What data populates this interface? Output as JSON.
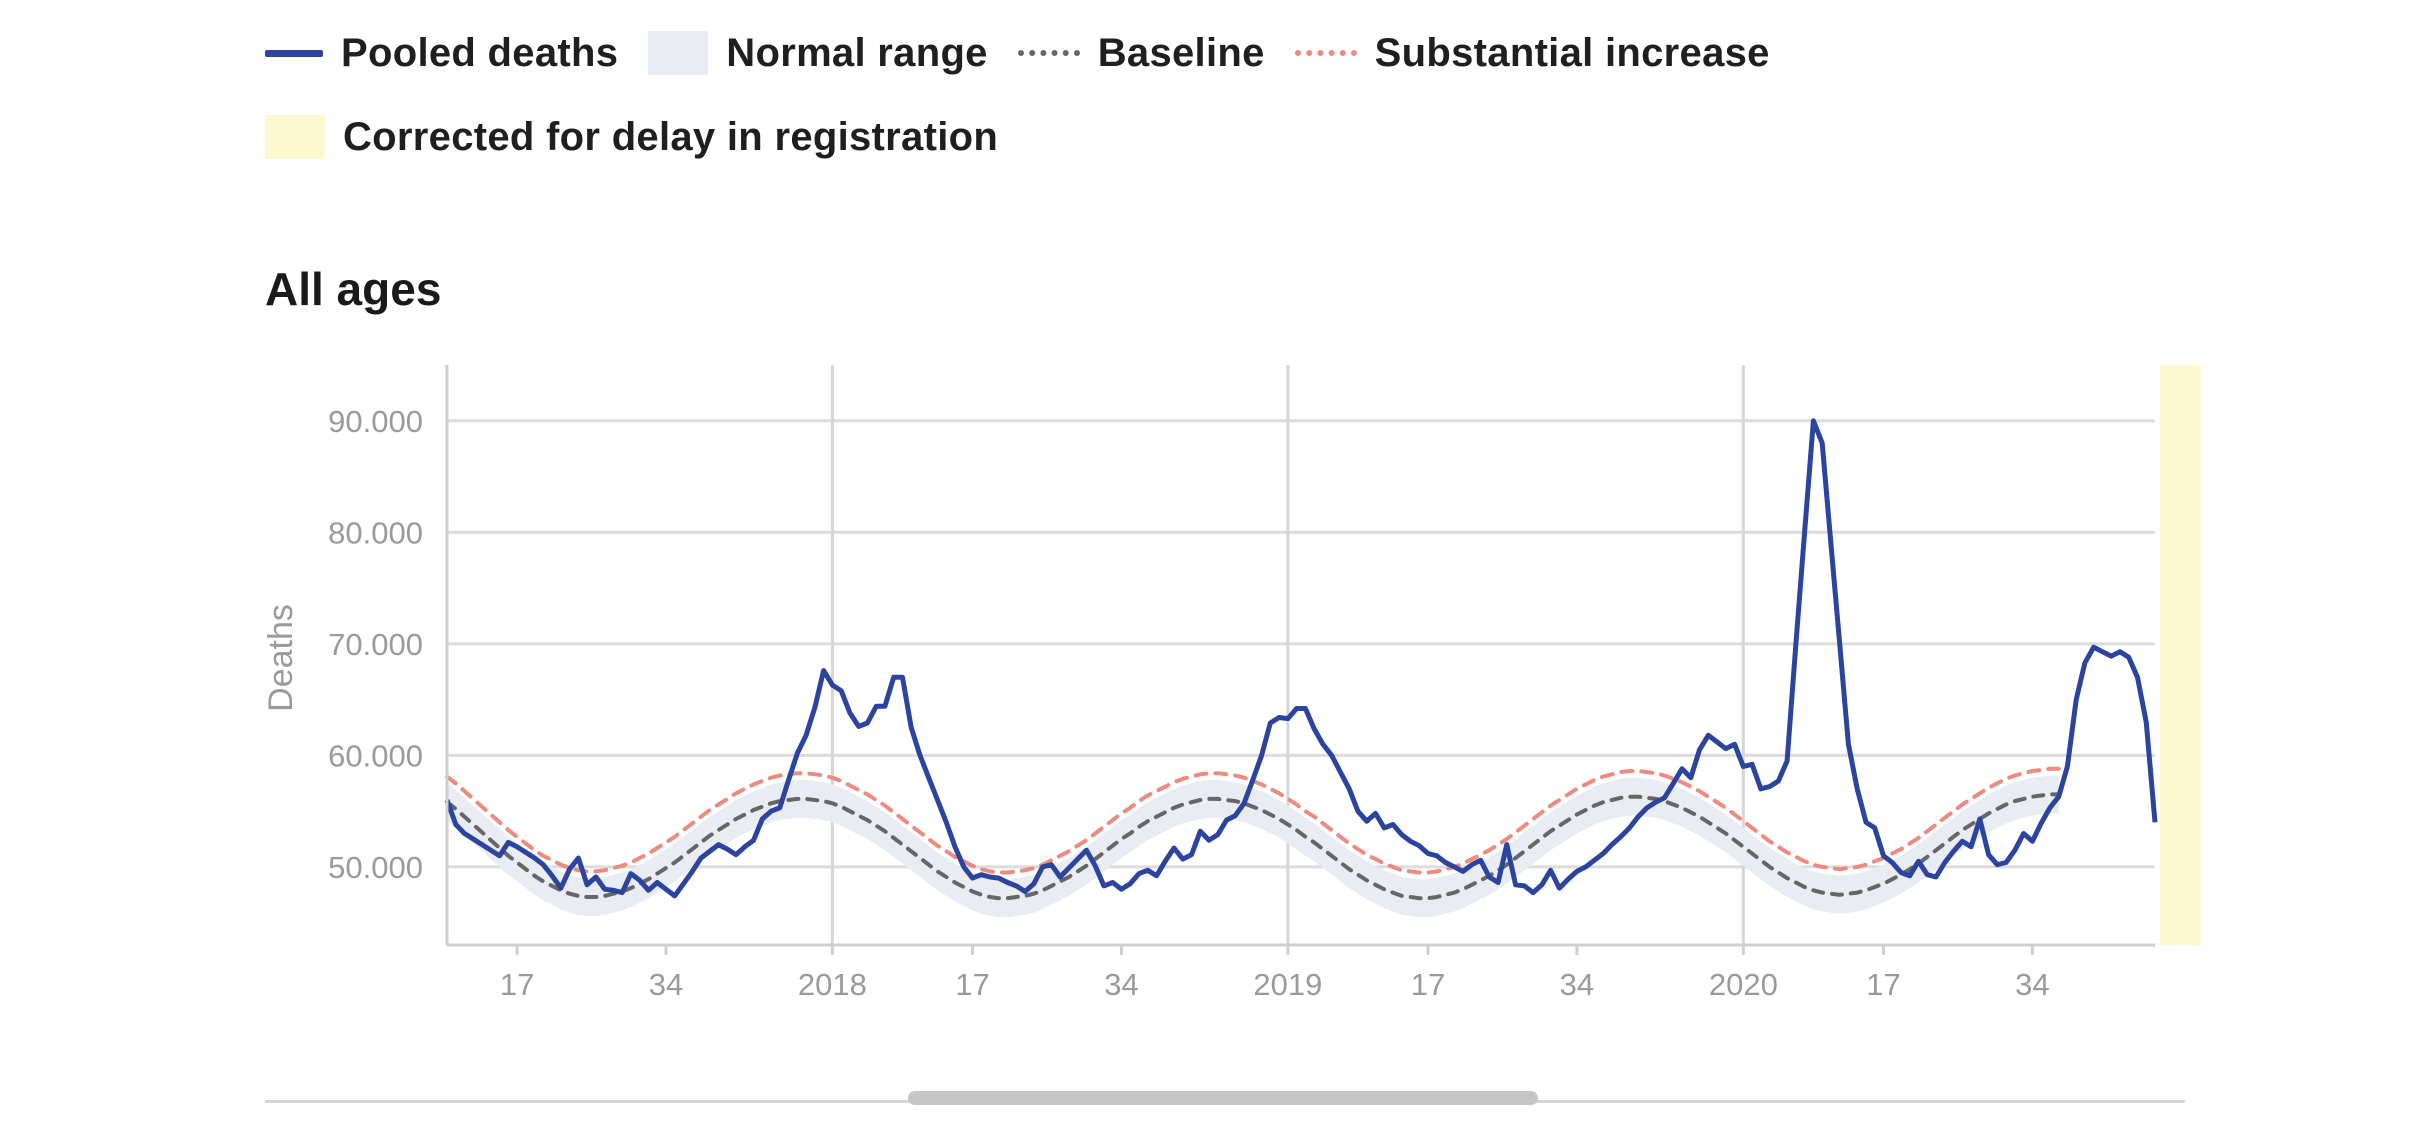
{
  "legend": {
    "items": [
      {
        "label": "Pooled deaths",
        "kind": "line",
        "color": "#2b44a0"
      },
      {
        "label": "Normal range",
        "kind": "box",
        "color": "#e9ecf2"
      },
      {
        "label": "Baseline",
        "kind": "dash",
        "color": "#666666"
      },
      {
        "label": "Substantial increase",
        "kind": "dash",
        "color": "#ef8a80"
      }
    ],
    "delay": {
      "label": "Corrected for delay in registration",
      "color": "#fdf8cf"
    }
  },
  "chart_data": {
    "type": "line",
    "title": "All ages",
    "ylabel": "Deaths",
    "xlabel": "",
    "ylim": [
      43000,
      95000
    ],
    "yticks": [
      50000,
      60000,
      70000,
      80000,
      90000
    ],
    "ytick_labels": [
      "50.000",
      "60.000",
      "70.000",
      "80.000",
      "90.000"
    ],
    "x_start_week": "2017-W09",
    "x_end_week": "2020-W53",
    "xtick_labels": [
      {
        "label": "17",
        "week_index": 8
      },
      {
        "label": "34",
        "week_index": 25
      },
      {
        "label": "2018",
        "week_index": 44
      },
      {
        "label": "17",
        "week_index": 60
      },
      {
        "label": "34",
        "week_index": 77
      },
      {
        "label": "2019",
        "week_index": 96
      },
      {
        "label": "17",
        "week_index": 112
      },
      {
        "label": "34",
        "week_index": 129
      },
      {
        "label": "2020",
        "week_index": 148
      },
      {
        "label": "17",
        "week_index": 164
      },
      {
        "label": "34",
        "week_index": 181
      }
    ],
    "vertical_grid_week_index": [
      44,
      96,
      148
    ],
    "grid": true,
    "legend_position": "top-left",
    "delay_corrected_weeks": [
      196,
      200
    ],
    "series": [
      {
        "name": "Pooled deaths",
        "color": "#2b44a0",
        "values": [
          56000,
          53800,
          53000,
          52500,
          52000,
          51500,
          51000,
          52200,
          51800,
          51300,
          50800,
          50200,
          49200,
          48100,
          49800,
          50800,
          48400,
          49100,
          48000,
          47900,
          47700,
          49400,
          48800,
          47900,
          48600,
          48000,
          47400,
          48500,
          49600,
          50800,
          51400,
          52000,
          51600,
          51100,
          51800,
          52400,
          54300,
          55000,
          55300,
          57800,
          60200,
          61800,
          64300,
          67600,
          66300,
          65800,
          63800,
          62600,
          62900,
          64400,
          64400,
          67000,
          67000,
          62500,
          60000,
          58000,
          56000,
          54000,
          51800,
          50000,
          49000,
          49300,
          49100,
          49000,
          48600,
          48300,
          47800,
          48500,
          50000,
          50200,
          49100,
          49900,
          50700,
          51500,
          50100,
          48300,
          48600,
          48000,
          48500,
          49400,
          49700,
          49200,
          50500,
          51700,
          50700,
          51100,
          53200,
          52400,
          52900,
          54200,
          54600,
          55700,
          57800,
          60000,
          62900,
          63400,
          63300,
          64200,
          64200,
          62400,
          61000,
          60000,
          58500,
          57000,
          55000,
          54100,
          54800,
          53500,
          53800,
          52900,
          52300,
          51900,
          51200,
          51000,
          50400,
          50000,
          49600,
          50200,
          50600,
          49100,
          48600,
          52000,
          48400,
          48300,
          47700,
          48400,
          49700,
          48100,
          48900,
          49600,
          50000,
          50600,
          51200,
          52000,
          52700,
          53500,
          54500,
          55300,
          55800,
          56200,
          57500,
          58800,
          58000,
          60500,
          61800,
          61200,
          60600,
          61000,
          59000,
          59200,
          57000,
          57200,
          57700,
          59500,
          70000,
          80000,
          90000,
          88000,
          79000,
          70000,
          61000,
          57000,
          54000,
          53500,
          51000,
          50400,
          49500,
          49200,
          50500,
          49300,
          49100,
          50400,
          51400,
          52300,
          51800,
          54300,
          51100,
          50200,
          50400,
          51500,
          53000,
          52300,
          53900,
          55300,
          56300,
          59000,
          65000,
          68300,
          69700,
          69300,
          68900,
          69300,
          68800,
          67000,
          63000,
          54000
        ]
      },
      {
        "name": "Baseline",
        "color": "#666666",
        "values": [
          55800,
          55200,
          54500,
          53800,
          53100,
          52400,
          51700,
          51000,
          50400,
          49800,
          49200,
          48700,
          48300,
          47900,
          47600,
          47400,
          47300,
          47300,
          47400,
          47600,
          47800,
          48100,
          48500,
          48900,
          49400,
          49900,
          50400,
          51000,
          51600,
          52200,
          52800,
          53300,
          53800,
          54300,
          54700,
          55100,
          55400,
          55700,
          55900,
          56000,
          56100,
          56100,
          56000,
          55900,
          55700,
          55400,
          55000,
          54600,
          54200,
          53700,
          53200,
          52600,
          52000,
          51400,
          50800,
          50200,
          49600,
          49100,
          48600,
          48200,
          47800,
          47500,
          47300,
          47200,
          47200,
          47300,
          47400,
          47600,
          47900,
          48300,
          48700,
          49100,
          49600,
          50100,
          50700,
          51300,
          51900,
          52500,
          53000,
          53600,
          54100,
          54500,
          54900,
          55300,
          55600,
          55800,
          56000,
          56100,
          56100,
          56000,
          55900,
          55700,
          55400,
          55100,
          54700,
          54300,
          53800,
          53300,
          52700,
          52200,
          51600,
          51000,
          50400,
          49800,
          49300,
          48800,
          48400,
          48000,
          47700,
          47400,
          47300,
          47200,
          47200,
          47300,
          47500,
          47700,
          48000,
          48400,
          48800,
          49200,
          49700,
          50200,
          50800,
          51400,
          52000,
          52600,
          53200,
          53700,
          54200,
          54700,
          55100,
          55500,
          55800,
          56000,
          56200,
          56300,
          56300,
          56200,
          56100,
          55900,
          55600,
          55300,
          54900,
          54500,
          54000,
          53500,
          53000,
          52400,
          51800,
          51200,
          50600,
          50000,
          49500,
          49000,
          48600,
          48200,
          47900,
          47700,
          47600,
          47500,
          47600,
          47700,
          47900,
          48200,
          48500,
          48900,
          49300,
          49800,
          50300,
          50900,
          51500,
          52100,
          52700,
          53300,
          53800,
          54300,
          54800,
          55200,
          55600,
          55900,
          56100,
          56300,
          56400,
          56500,
          56500
        ]
      }
    ],
    "band": {
      "name": "Normal range",
      "color": "#e9ecf2",
      "half_width": 1700
    },
    "threshold": {
      "name": "Substantial increase",
      "color": "#ef8a80",
      "offset": 2300
    }
  }
}
